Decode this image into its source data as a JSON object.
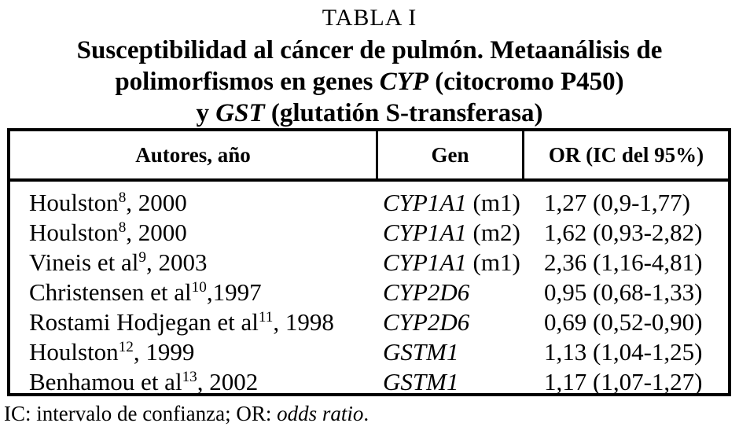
{
  "title": "TABLA I",
  "subtitle": {
    "line1": "Susceptibilidad al cáncer de pulmón. Metaanálisis de",
    "line2_pre": "polimorfismos en genes ",
    "line2_gene": "CYP",
    "line2_post": " (citocromo P450)",
    "line3_pre": "y ",
    "line3_gene": "GST",
    "line3_post": " (glutatión S-transferasa)"
  },
  "table": {
    "headers": [
      "Autores, año",
      "Gen",
      "OR (IC del 95%)"
    ],
    "rows": [
      {
        "author": "Houlston",
        "ref": "8",
        "year": ", 2000",
        "gene": "CYP1A1",
        "variant": " (m1)",
        "or": "1,27 (0,9-1,77)"
      },
      {
        "author": "Houlston",
        "ref": "8",
        "year": ", 2000",
        "gene": "CYP1A1",
        "variant": " (m2)",
        "or": "1,62 (0,93-2,82)"
      },
      {
        "author": "Vineis et al",
        "ref": "9",
        "year": ", 2003",
        "gene": "CYP1A1",
        "variant": " (m1)",
        "or": "2,36 (1,16-4,81)"
      },
      {
        "author": "Christensen et al",
        "ref": "10",
        "year": ",1997",
        "gene": "CYP2D6",
        "variant": "",
        "or": "0,95 (0,68-1,33)"
      },
      {
        "author": "Rostami Hodjegan et al",
        "ref": "11",
        "year": ", 1998",
        "gene": "CYP2D6",
        "variant": "",
        "or": "0,69 (0,52-0,90)"
      },
      {
        "author": "Houlston",
        "ref": "12",
        "year": ", 1999",
        "gene": "GSTM1",
        "variant": "",
        "or": "1,13 (1,04-1,25)"
      },
      {
        "author": "Benhamou et al",
        "ref": "13",
        "year": ", 2002",
        "gene": "GSTM1",
        "variant": "",
        "or": "1,17 (1,07-1,27)"
      }
    ]
  },
  "footnote": {
    "pre": "IC: intervalo de confianza; OR: ",
    "italic": "odds ratio",
    "post": "."
  },
  "colors": {
    "text": "#000000",
    "background": "#ffffff",
    "border": "#000000"
  }
}
